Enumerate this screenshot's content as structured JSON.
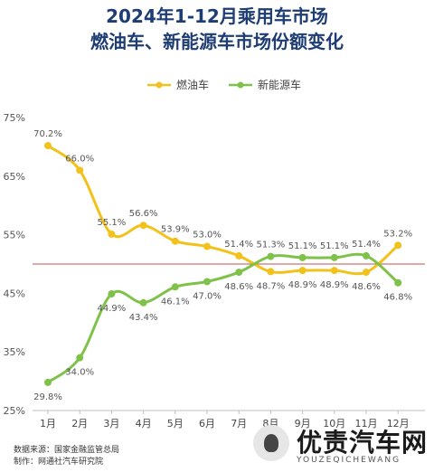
{
  "header": {
    "title_line1": "2024年1-12月乘用车市场",
    "title_line2": "燃油车、新能源车市场份额变化"
  },
  "footer": {
    "source": "数据来源：国家金融监管总局",
    "producer": "制作：网通社汽车研究院"
  },
  "watermark": {
    "brand": "优责汽车网",
    "sub": "YOUZEQICHEWANG"
  },
  "chart_data": {
    "type": "line",
    "categories": [
      "1月",
      "2月",
      "3月",
      "4月",
      "5月",
      "6月",
      "7月",
      "8月",
      "9月",
      "10月",
      "11月",
      "12月"
    ],
    "series": [
      {
        "name": "燃油车",
        "color": "#f2c21a",
        "values": [
          70.2,
          66.0,
          55.1,
          56.6,
          53.9,
          53.0,
          51.4,
          48.7,
          48.9,
          48.9,
          48.6,
          53.2
        ],
        "labels": [
          "70.2%",
          "66.0%",
          "55.1%",
          "56.6%",
          "53.9%",
          "53.0%",
          "51.4%",
          "48.7%",
          "48.9%",
          "48.9%",
          "48.6%",
          "53.2%"
        ]
      },
      {
        "name": "新能源车",
        "color": "#7ec24a",
        "values": [
          29.8,
          34.0,
          44.9,
          43.4,
          46.1,
          47.0,
          48.6,
          51.3,
          51.1,
          51.1,
          51.4,
          46.8
        ],
        "labels": [
          "29.8%",
          "34.0%",
          "44.9%",
          "43.4%",
          "46.1%",
          "47.0%",
          "48.6%",
          "51.3%",
          "51.1%",
          "51.1%",
          "51.4%",
          "46.8%"
        ]
      }
    ],
    "ylim": [
      25,
      75
    ],
    "yticks": [
      "25%",
      "35%",
      "45%",
      "55%",
      "65%",
      "75%"
    ],
    "ytick_values": [
      25,
      35,
      45,
      55,
      65,
      75
    ],
    "reference_line": 50,
    "reference_color": "#c0504d",
    "legend_position": "top-center",
    "grid": false
  }
}
